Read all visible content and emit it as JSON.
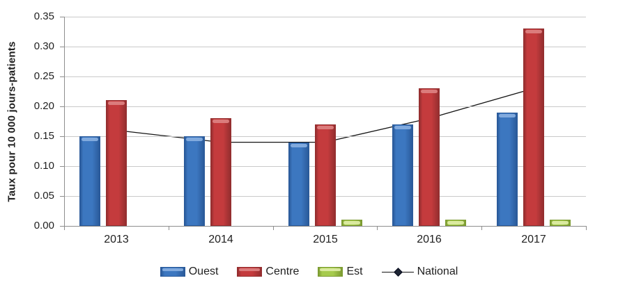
{
  "chart_data": {
    "type": "bar",
    "subtype": "grouped bars with overlaid line series",
    "categories": [
      "2013",
      "2014",
      "2015",
      "2016",
      "2017"
    ],
    "series": [
      {
        "name": "Ouest",
        "type": "bar",
        "color": "#3c77c0",
        "edge_color": "#2a5a9a",
        "bevel_color": "#85addf",
        "values": [
          0.15,
          0.15,
          0.14,
          0.17,
          0.19
        ]
      },
      {
        "name": "Centre",
        "type": "bar",
        "color": "#c43b3d",
        "edge_color": "#942e2f",
        "bevel_color": "#dc8080",
        "values": [
          0.21,
          0.18,
          0.17,
          0.23,
          0.33
        ]
      },
      {
        "name": "Est",
        "type": "bar",
        "color": "#a6cb4d",
        "edge_color": "#7c9b31",
        "bevel_color": "#dcebA3",
        "values": [
          0,
          0,
          0.01,
          0.01,
          0.01
        ]
      },
      {
        "name": "National",
        "type": "line",
        "color": "#141414",
        "marker": "diamond",
        "marker_color": "#1d2433",
        "values": [
          0.16,
          0.14,
          0.14,
          0.18,
          0.23
        ]
      }
    ],
    "title": "",
    "xlabel": "",
    "ylabel": "Taux pour 10 000 jours-patients",
    "ylim": [
      0,
      0.35
    ],
    "ytick_step": 0.05,
    "y_tick_labels": [
      "0.00",
      "0.05",
      "0.10",
      "0.15",
      "0.20",
      "0.25",
      "0.30",
      "0.35"
    ],
    "grid": true,
    "gridline_color": "#c9c9c9",
    "axis_color": "#8e8e8e",
    "legend_position": "bottom"
  }
}
